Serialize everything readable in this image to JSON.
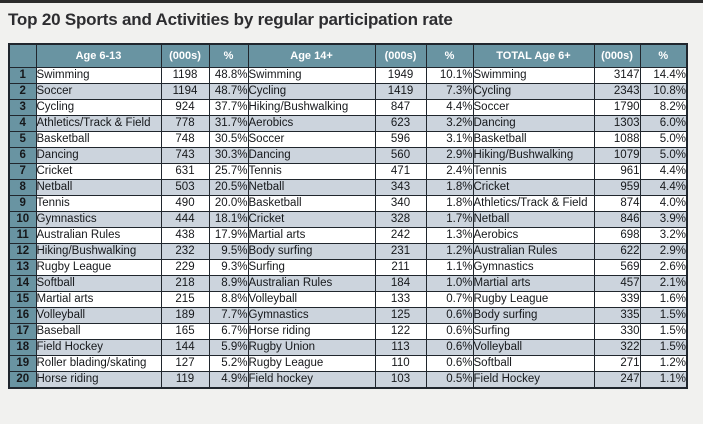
{
  "title": "Top 20 Sports and Activities by regular participation rate",
  "colors": {
    "page_background": "#f1f1ef",
    "top_strip": "#2b2b2b",
    "header_background": "#6994a2",
    "alternate_row": "#ccd4dd",
    "border": "#20262d",
    "header_text": "#ffffff",
    "title_text": "#2d2d30"
  },
  "chart_data": {
    "type": "table",
    "title": "Top 20 Sports and Activities by regular participation rate",
    "column_groups": [
      "Age 6-13",
      "Age 14+",
      "TOTAL Age 6+"
    ],
    "headers": [
      "",
      "Age 6-13",
      "(000s)",
      "%",
      "Age 14+",
      "(000s)",
      "%",
      "TOTAL Age 6+",
      "(000s)",
      "%"
    ],
    "rows": [
      [
        "1",
        "Swimming",
        "1198",
        "48.8%",
        "Swimming",
        "1949",
        "10.1%",
        "Swimming",
        "3147",
        "14.4%"
      ],
      [
        "2",
        "Soccer",
        "1194",
        "48.7%",
        "Cycling",
        "1419",
        "7.3%",
        "Cycling",
        "2343",
        "10.8%"
      ],
      [
        "3",
        "Cycling",
        "924",
        "37.7%",
        "Hiking/Bushwalking",
        "847",
        "4.4%",
        "Soccer",
        "1790",
        "8.2%"
      ],
      [
        "4",
        "Athletics/Track & Field",
        "778",
        "31.7%",
        "Aerobics",
        "623",
        "3.2%",
        "Dancing",
        "1303",
        "6.0%"
      ],
      [
        "5",
        "Basketball",
        "748",
        "30.5%",
        "Soccer",
        "596",
        "3.1%",
        "Basketball",
        "1088",
        "5.0%"
      ],
      [
        "6",
        "Dancing",
        "743",
        "30.3%",
        "Dancing",
        "560",
        "2.9%",
        "Hiking/Bushwalking",
        "1079",
        "5.0%"
      ],
      [
        "7",
        "Cricket",
        "631",
        "25.7%",
        "Tennis",
        "471",
        "2.4%",
        "Tennis",
        "961",
        "4.4%"
      ],
      [
        "8",
        "Netball",
        "503",
        "20.5%",
        "Netball",
        "343",
        "1.8%",
        "Cricket",
        "959",
        "4.4%"
      ],
      [
        "9",
        "Tennis",
        "490",
        "20.0%",
        "Basketball",
        "340",
        "1.8%",
        "Athletics/Track & Field",
        "874",
        "4.0%"
      ],
      [
        "10",
        "Gymnastics",
        "444",
        "18.1%",
        "Cricket",
        "328",
        "1.7%",
        "Netball",
        "846",
        "3.9%"
      ],
      [
        "11",
        "Australian Rules",
        "438",
        "17.9%",
        "Martial arts",
        "242",
        "1.3%",
        "Aerobics",
        "698",
        "3.2%"
      ],
      [
        "12",
        "Hiking/Bushwalking",
        "232",
        "9.5%",
        "Body surfing",
        "231",
        "1.2%",
        "Australian Rules",
        "622",
        "2.9%"
      ],
      [
        "13",
        "Rugby League",
        "229",
        "9.3%",
        "Surfing",
        "211",
        "1.1%",
        "Gymnastics",
        "569",
        "2.6%"
      ],
      [
        "14",
        "Softball",
        "218",
        "8.9%",
        "Australian Rules",
        "184",
        "1.0%",
        "Martial arts",
        "457",
        "2.1%"
      ],
      [
        "15",
        "Martial arts",
        "215",
        "8.8%",
        "Volleyball",
        "133",
        "0.7%",
        "Rugby League",
        "339",
        "1.6%"
      ],
      [
        "16",
        "Volleyball",
        "189",
        "7.7%",
        "Gymnastics",
        "125",
        "0.6%",
        "Body surfing",
        "335",
        "1.5%"
      ],
      [
        "17",
        "Baseball",
        "165",
        "6.7%",
        "Horse riding",
        "122",
        "0.6%",
        "Surfing",
        "330",
        "1.5%"
      ],
      [
        "18",
        "Field Hockey",
        "144",
        "5.9%",
        "Rugby Union",
        "113",
        "0.6%",
        "Volleyball",
        "322",
        "1.5%"
      ],
      [
        "19",
        "Roller blading/skating",
        "127",
        "5.2%",
        "Rugby League",
        "110",
        "0.6%",
        "Softball",
        "271",
        "1.2%"
      ],
      [
        "20",
        "Horse riding",
        "119",
        "4.9%",
        "Field hockey",
        "103",
        "0.5%",
        "Field Hockey",
        "247",
        "1.1%"
      ]
    ]
  }
}
